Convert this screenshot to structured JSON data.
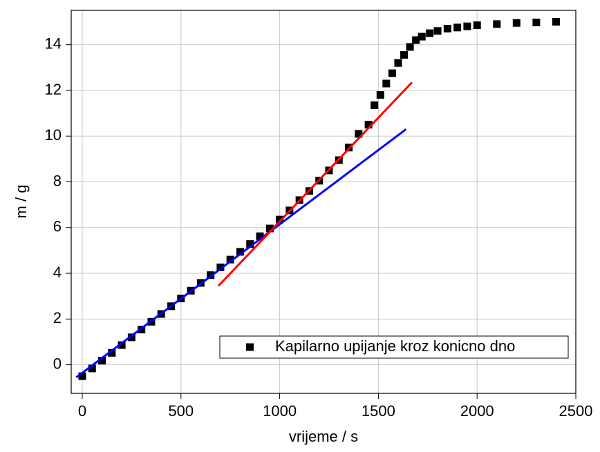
{
  "chart_data": {
    "type": "scatter",
    "xlabel": "vrijeme / s",
    "ylabel": "m / g",
    "xlim": [
      -56,
      2500
    ],
    "xticks": [
      0,
      500,
      1000,
      1500,
      2000,
      2500
    ],
    "ylim": [
      -1.25,
      15.5
    ],
    "yticks": [
      0,
      2,
      4,
      6,
      8,
      10,
      12,
      14
    ],
    "grid": true,
    "legend": "lower right",
    "series": [
      {
        "name": "Kapilarno upijanje kroz konicno dno",
        "type": "scatter",
        "color": "#000000",
        "x": [
          0,
          50,
          100,
          150,
          200,
          250,
          300,
          350,
          400,
          450,
          500,
          550,
          600,
          650,
          700,
          750,
          800,
          850,
          900,
          950,
          1000,
          1050,
          1100,
          1150,
          1200,
          1250,
          1300,
          1350,
          1400,
          1450,
          1480,
          1510,
          1540,
          1570,
          1600,
          1630,
          1660,
          1690,
          1720,
          1760,
          1800,
          1850,
          1900,
          1950,
          2000,
          2100,
          2200,
          2300,
          2400
        ],
        "values": [
          -0.5,
          -0.16,
          0.18,
          0.52,
          0.86,
          1.2,
          1.54,
          1.88,
          2.22,
          2.56,
          2.9,
          3.24,
          3.58,
          3.92,
          4.26,
          4.6,
          4.94,
          5.28,
          5.62,
          5.96,
          6.35,
          6.75,
          7.2,
          7.6,
          8.05,
          8.5,
          8.95,
          9.5,
          10.1,
          10.5,
          11.35,
          11.8,
          12.3,
          12.75,
          13.2,
          13.55,
          13.9,
          14.2,
          14.35,
          14.5,
          14.6,
          14.7,
          14.75,
          14.8,
          14.85,
          14.9,
          14.95,
          14.97,
          15.0
        ]
      },
      {
        "type": "line",
        "color": "#0000ff",
        "x": [
          -30,
          1640
        ],
        "values": [
          -0.55,
          10.3
        ]
      },
      {
        "type": "line",
        "color": "#ff0000",
        "x": [
          690,
          1670
        ],
        "values": [
          3.45,
          12.35
        ]
      }
    ]
  }
}
